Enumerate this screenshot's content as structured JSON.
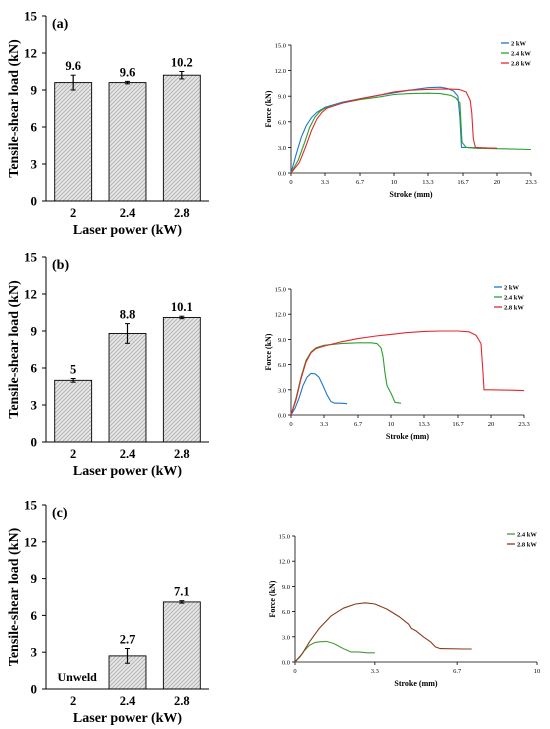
{
  "panels": [
    {
      "label": "(a)",
      "bar": {
        "type": "bar",
        "categories": [
          "2",
          "2.4",
          "2.8"
        ],
        "values": [
          9.6,
          9.6,
          10.2
        ],
        "errors": [
          0.6,
          0.1,
          0.3
        ],
        "value_labels": [
          "9.6",
          "9.6",
          "10.2"
        ],
        "ylim": [
          0,
          15
        ],
        "yticks": [
          "0",
          "3",
          "6",
          "9",
          "12",
          "15"
        ],
        "ylabel": "Tensile-shear load (kN)",
        "xlabel": "Laser power (kW)",
        "bar_fill": "hatched light gray"
      },
      "line": {
        "type": "line",
        "xlabel": "Stroke (mm)",
        "ylabel": "Force (kN)",
        "xlim": [
          0,
          23.3
        ],
        "ylim": [
          0,
          15
        ],
        "xticks": [
          "0",
          "3.3",
          "6.7",
          "10",
          "13.3",
          "16.7",
          "20",
          "23.3"
        ],
        "yticks": [
          "0.0",
          "3.0",
          "6.0",
          "9.0",
          "12.0",
          "15.0"
        ],
        "legend_position": "top-right",
        "series": [
          {
            "name": "2 kW",
            "color": "#1f77c8",
            "points": [
              [
                0,
                0
              ],
              [
                0.5,
                2.2
              ],
              [
                1,
                4.2
              ],
              [
                1.5,
                5.6
              ],
              [
                2,
                6.5
              ],
              [
                2.5,
                7.1
              ],
              [
                3.3,
                7.7
              ],
              [
                5,
                8.3
              ],
              [
                6.7,
                8.7
              ],
              [
                8.5,
                9.1
              ],
              [
                10,
                9.4
              ],
              [
                11.5,
                9.7
              ],
              [
                13.3,
                10.0
              ],
              [
                14.5,
                10.05
              ],
              [
                15.2,
                9.9
              ],
              [
                15.8,
                9.6
              ],
              [
                16.2,
                9.0
              ],
              [
                16.4,
                6.5
              ],
              [
                16.55,
                3.0
              ],
              [
                17,
                3.0
              ],
              [
                20,
                2.9
              ]
            ]
          },
          {
            "name": "2.4 kW",
            "color": "#2ca02c",
            "points": [
              [
                0,
                0
              ],
              [
                0.7,
                1.5
              ],
              [
                1.3,
                3.5
              ],
              [
                1.8,
                5.3
              ],
              [
                2.3,
                6.5
              ],
              [
                2.8,
                7.2
              ],
              [
                3.3,
                7.6
              ],
              [
                5,
                8.2
              ],
              [
                6.7,
                8.6
              ],
              [
                8.5,
                8.9
              ],
              [
                10,
                9.2
              ],
              [
                11.5,
                9.3
              ],
              [
                13.3,
                9.35
              ],
              [
                14.5,
                9.3
              ],
              [
                15.5,
                9.1
              ],
              [
                16,
                8.8
              ],
              [
                16.4,
                8.2
              ],
              [
                16.6,
                3.6
              ],
              [
                17,
                3.0
              ],
              [
                18,
                2.9
              ],
              [
                20,
                2.85
              ],
              [
                23.3,
                2.75
              ]
            ]
          },
          {
            "name": "2.8 kW",
            "color": "#e2282d",
            "points": [
              [
                0,
                0
              ],
              [
                0.8,
                1.2
              ],
              [
                1.4,
                3.0
              ],
              [
                2,
                5.0
              ],
              [
                2.5,
                6.3
              ],
              [
                3,
                7.1
              ],
              [
                3.5,
                7.6
              ],
              [
                5,
                8.2
              ],
              [
                6.7,
                8.7
              ],
              [
                8.5,
                9.1
              ],
              [
                10,
                9.5
              ],
              [
                11.5,
                9.7
              ],
              [
                13.3,
                9.8
              ],
              [
                15,
                9.85
              ],
              [
                16.3,
                9.8
              ],
              [
                17,
                9.5
              ],
              [
                17.4,
                8.5
              ],
              [
                17.55,
                7.0
              ],
              [
                17.7,
                4.0
              ],
              [
                17.9,
                3.0
              ],
              [
                18.5,
                2.95
              ],
              [
                20,
                2.9
              ]
            ]
          }
        ]
      }
    },
    {
      "label": "(b)",
      "bar": {
        "type": "bar",
        "categories": [
          "2",
          "2.4",
          "2.8"
        ],
        "values": [
          5.0,
          8.8,
          10.1
        ],
        "errors": [
          0.15,
          0.8,
          0.1
        ],
        "value_labels": [
          "5",
          "8.8",
          "10.1"
        ],
        "ylim": [
          0,
          15
        ],
        "yticks": [
          "0",
          "3",
          "6",
          "9",
          "12",
          "15"
        ],
        "ylabel": "Tensile-shear load (kN)",
        "xlabel": "Laser power (kW)",
        "bar_fill": "hatched light gray"
      },
      "line": {
        "type": "line",
        "xlabel": "Stroke (mm)",
        "ylabel": "Force (kN)",
        "xlim": [
          0,
          23.3
        ],
        "ylim": [
          0,
          15
        ],
        "xticks": [
          "0",
          "3.3",
          "6.7",
          "10",
          "13.3",
          "16.7",
          "20",
          "23.3"
        ],
        "yticks": [
          "0.0",
          "3.0",
          "6.0",
          "9.0",
          "12.0",
          "15.0"
        ],
        "legend_position": "top-right",
        "series": [
          {
            "name": "2 kW",
            "color": "#1f77c8",
            "points": [
              [
                0,
                0
              ],
              [
                0.4,
                0.8
              ],
              [
                0.8,
                2.0
              ],
              [
                1.2,
                3.5
              ],
              [
                1.6,
                4.5
              ],
              [
                2.0,
                4.95
              ],
              [
                2.4,
                4.9
              ],
              [
                2.8,
                4.5
              ],
              [
                3.2,
                3.5
              ],
              [
                3.6,
                2.4
              ],
              [
                4.0,
                1.6
              ],
              [
                4.4,
                1.4
              ],
              [
                5.0,
                1.4
              ],
              [
                5.6,
                1.35
              ]
            ]
          },
          {
            "name": "2.4 kW",
            "color": "#2ca02c",
            "points": [
              [
                0,
                0
              ],
              [
                0.5,
                2.0
              ],
              [
                1.0,
                4.5
              ],
              [
                1.5,
                6.5
              ],
              [
                2.0,
                7.5
              ],
              [
                2.5,
                8.0
              ],
              [
                3.3,
                8.3
              ],
              [
                5.0,
                8.5
              ],
              [
                6.7,
                8.6
              ],
              [
                8.0,
                8.6
              ],
              [
                8.6,
                8.5
              ],
              [
                9.0,
                8.0
              ],
              [
                9.2,
                7.0
              ],
              [
                9.4,
                5.0
              ],
              [
                9.6,
                3.5
              ],
              [
                10.0,
                2.6
              ],
              [
                10.4,
                1.5
              ],
              [
                11.0,
                1.4
              ]
            ]
          },
          {
            "name": "2.8 kW",
            "color": "#e2282d",
            "points": [
              [
                0,
                0
              ],
              [
                0.5,
                1.8
              ],
              [
                1.0,
                4.3
              ],
              [
                1.5,
                6.3
              ],
              [
                2.0,
                7.4
              ],
              [
                2.5,
                7.9
              ],
              [
                3.3,
                8.2
              ],
              [
                5.0,
                8.7
              ],
              [
                6.7,
                9.1
              ],
              [
                8.5,
                9.4
              ],
              [
                10,
                9.6
              ],
              [
                11.5,
                9.8
              ],
              [
                13.3,
                9.95
              ],
              [
                15,
                10.0
              ],
              [
                16.7,
                10.0
              ],
              [
                17.8,
                9.9
              ],
              [
                18.5,
                9.5
              ],
              [
                19.0,
                8.5
              ],
              [
                19.2,
                5.0
              ],
              [
                19.3,
                3.0
              ],
              [
                20,
                3.0
              ],
              [
                22,
                2.95
              ],
              [
                23.3,
                2.9
              ]
            ]
          }
        ]
      }
    },
    {
      "label": "(c)",
      "bar": {
        "type": "bar",
        "categories": [
          "2",
          "2.4",
          "2.8"
        ],
        "values": [
          0,
          2.7,
          7.1
        ],
        "errors": [
          0,
          0.6,
          0.1
        ],
        "value_labels": [
          "",
          "2.7",
          "7.1"
        ],
        "note": "Unweld",
        "ylim": [
          0,
          15
        ],
        "yticks": [
          "0",
          "3",
          "6",
          "9",
          "12",
          "15"
        ],
        "ylabel": "Tensile-shear load (kN)",
        "xlabel": "Laser power (kW)",
        "bar_fill": "hatched light gray"
      },
      "line": {
        "type": "line",
        "xlabel": "Stroke (mm)",
        "ylabel": "Force (kN)",
        "xlim": [
          0,
          10
        ],
        "ylim": [
          0,
          15
        ],
        "xticks": [
          "0",
          "3.3",
          "6.7",
          "10"
        ],
        "yticks": [
          "0.0",
          "3.0",
          "6.0",
          "9.0",
          "12.0",
          "15.0"
        ],
        "legend_position": "top-right",
        "series": [
          {
            "name": "2.4 kW",
            "color": "#4a9a3c",
            "points": [
              [
                0,
                0
              ],
              [
                0.2,
                0.6
              ],
              [
                0.4,
                1.4
              ],
              [
                0.6,
                2.0
              ],
              [
                0.8,
                2.3
              ],
              [
                1.0,
                2.4
              ],
              [
                1.3,
                2.45
              ],
              [
                1.6,
                2.2
              ],
              [
                2.0,
                1.6
              ],
              [
                2.3,
                1.2
              ],
              [
                2.6,
                1.2
              ],
              [
                3.0,
                1.1
              ],
              [
                3.3,
                1.1
              ]
            ]
          },
          {
            "name": "2.8 kW",
            "color": "#8b3a1a",
            "points": [
              [
                0,
                0
              ],
              [
                0.3,
                1.0
              ],
              [
                0.6,
                2.4
              ],
              [
                1.0,
                4.0
              ],
              [
                1.5,
                5.5
              ],
              [
                2.0,
                6.4
              ],
              [
                2.5,
                6.9
              ],
              [
                2.9,
                7.05
              ],
              [
                3.3,
                6.9
              ],
              [
                3.8,
                6.3
              ],
              [
                4.3,
                5.4
              ],
              [
                4.7,
                4.5
              ],
              [
                4.8,
                4.0
              ],
              [
                5.0,
                3.7
              ],
              [
                5.3,
                3.0
              ],
              [
                5.6,
                2.4
              ],
              [
                5.8,
                1.8
              ],
              [
                6.0,
                1.6
              ],
              [
                7.0,
                1.55
              ],
              [
                7.3,
                1.55
              ]
            ]
          }
        ]
      }
    }
  ],
  "chart_data": [
    {
      "type": "bar",
      "panel": "(a)",
      "categories": [
        "2",
        "2.4",
        "2.8"
      ],
      "values": [
        9.6,
        9.6,
        10.2
      ],
      "xlabel": "Laser power (kW)",
      "ylabel": "Tensile-shear load (kN)",
      "ylim": [
        0,
        15
      ]
    },
    {
      "type": "line",
      "panel": "(a)",
      "xlabel": "Stroke (mm)",
      "ylabel": "Force (kN)",
      "xlim": [
        0,
        23.3
      ],
      "ylim": [
        0,
        15
      ],
      "series_names": [
        "2 kW",
        "2.4 kW",
        "2.8 kW"
      ]
    },
    {
      "type": "bar",
      "panel": "(b)",
      "categories": [
        "2",
        "2.4",
        "2.8"
      ],
      "values": [
        5,
        8.8,
        10.1
      ],
      "xlabel": "Laser power (kW)",
      "ylabel": "Tensile-shear load (kN)",
      "ylim": [
        0,
        15
      ]
    },
    {
      "type": "line",
      "panel": "(b)",
      "xlabel": "Stroke (mm)",
      "ylabel": "Force (kN)",
      "xlim": [
        0,
        23.3
      ],
      "ylim": [
        0,
        15
      ],
      "series_names": [
        "2 kW",
        "2.4 kW",
        "2.8 kW"
      ]
    },
    {
      "type": "bar",
      "panel": "(c)",
      "categories": [
        "2",
        "2.4",
        "2.8"
      ],
      "values": [
        0,
        2.7,
        7.1
      ],
      "xlabel": "Laser power (kW)",
      "ylabel": "Tensile-shear load (kN)",
      "ylim": [
        0,
        15
      ],
      "annotations": [
        "Unweld"
      ]
    },
    {
      "type": "line",
      "panel": "(c)",
      "xlabel": "Stroke (mm)",
      "ylabel": "Force (kN)",
      "xlim": [
        0,
        10
      ],
      "ylim": [
        0,
        15
      ],
      "series_names": [
        "2.4 kW",
        "2.8 kW"
      ]
    }
  ]
}
